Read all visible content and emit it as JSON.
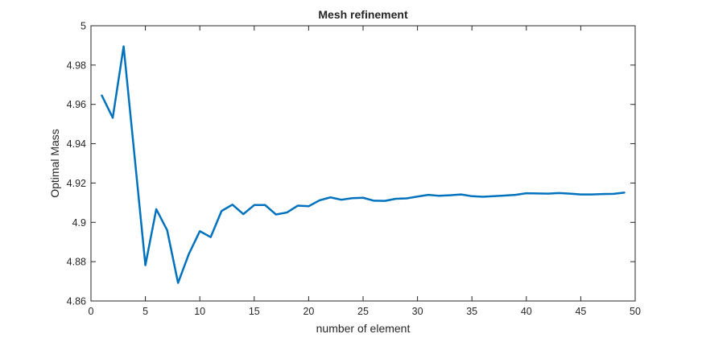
{
  "chart_data": {
    "type": "line",
    "title": "Mesh refinement",
    "xlabel": "number of element",
    "ylabel": "Optimal Mass",
    "xlim": [
      0,
      50
    ],
    "ylim": [
      4.86,
      5
    ],
    "xticks": [
      "0",
      "5",
      "10",
      "15",
      "20",
      "25",
      "30",
      "35",
      "40",
      "45",
      "50"
    ],
    "yticks": [
      "4.86",
      "4.88",
      "4.9",
      "4.92",
      "4.94",
      "4.96",
      "4.98",
      "5"
    ],
    "grid": false,
    "line_color": "#0072bd",
    "series": [
      {
        "x": [
          1,
          2,
          3,
          4,
          5,
          6,
          7,
          8,
          9,
          10,
          11,
          12,
          13,
          14,
          15,
          16,
          17,
          18,
          19,
          20,
          21,
          22,
          23,
          24,
          25,
          26,
          27,
          28,
          29,
          30,
          31,
          32,
          33,
          34,
          35,
          36,
          37,
          38,
          39,
          40,
          41,
          42,
          43,
          44,
          45,
          46,
          47,
          48,
          49
        ],
        "values": [
          4.9645,
          4.9532,
          4.9895,
          4.934,
          4.8782,
          4.9067,
          4.896,
          4.8692,
          4.884,
          4.8955,
          4.8925,
          4.9058,
          4.909,
          4.9042,
          4.9088,
          4.9088,
          4.904,
          4.905,
          4.9085,
          4.9082,
          4.9112,
          4.9127,
          4.9115,
          4.9123,
          4.9125,
          4.911,
          4.9109,
          4.912,
          4.9122,
          4.9131,
          4.914,
          4.9135,
          4.9138,
          4.9142,
          4.9133,
          4.913,
          4.9133,
          4.9136,
          4.914,
          4.9148,
          4.9147,
          4.9146,
          4.9149,
          4.9146,
          4.9142,
          4.9142,
          4.9144,
          4.9145,
          4.9151
        ]
      }
    ]
  }
}
